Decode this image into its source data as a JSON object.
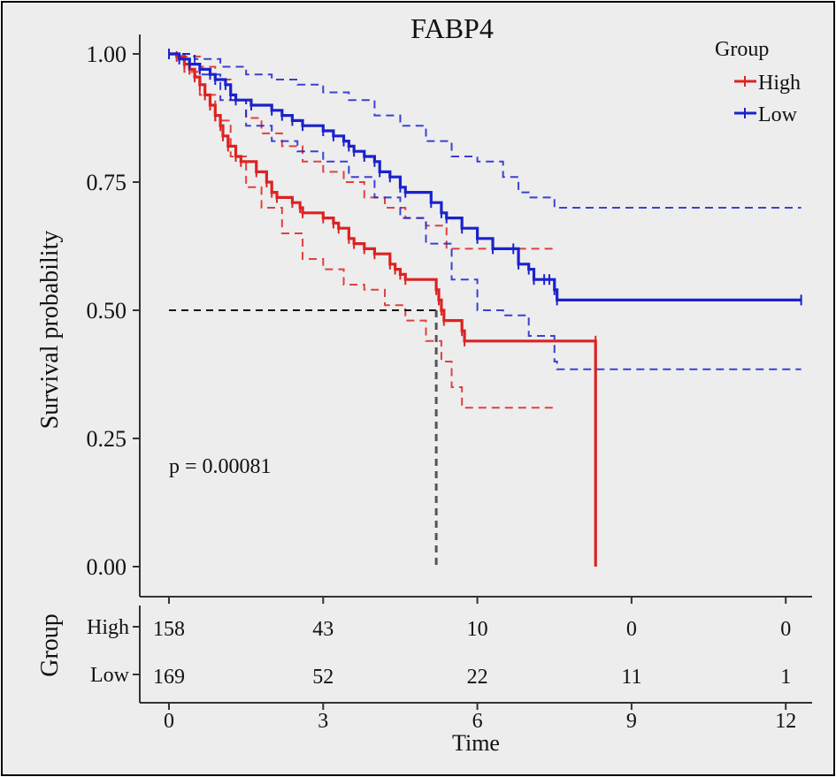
{
  "chart_data": {
    "type": "line",
    "subtype": "kaplan-meier",
    "title": "FABP4",
    "xlabel": "Time",
    "ylabel": "Survival probability",
    "xlim": [
      -0.3,
      12.5
    ],
    "ylim": [
      0,
      1
    ],
    "x_ticks": [
      0,
      3,
      6,
      9,
      12
    ],
    "x_tick_labels": [
      "0",
      "3",
      "6",
      "9",
      "12"
    ],
    "y_ticks": [
      0,
      0.25,
      0.5,
      0.75,
      1
    ],
    "y_tick_labels": [
      "0.00",
      "0.25",
      "0.50",
      "0.75",
      "1.00"
    ],
    "p_value_text": "p = 0.00081",
    "median_survival": {
      "y": 0.5,
      "x": 5.2
    },
    "legend": {
      "title": "Group",
      "position": "top-right",
      "entries": [
        "High",
        "Low"
      ]
    },
    "colors": {
      "High": "#dd2222",
      "Low": "#1a22cc",
      "median": "#444444"
    },
    "series": [
      {
        "name": "High",
        "color": "#dd2222",
        "points": [
          [
            0,
            1.0
          ],
          [
            0.15,
            0.995
          ],
          [
            0.3,
            0.98
          ],
          [
            0.4,
            0.97
          ],
          [
            0.5,
            0.955
          ],
          [
            0.6,
            0.94
          ],
          [
            0.7,
            0.92
          ],
          [
            0.8,
            0.9
          ],
          [
            0.9,
            0.88
          ],
          [
            1.0,
            0.86
          ],
          [
            1.05,
            0.84
          ],
          [
            1.15,
            0.82
          ],
          [
            1.3,
            0.8
          ],
          [
            1.4,
            0.79
          ],
          [
            1.7,
            0.77
          ],
          [
            1.9,
            0.75
          ],
          [
            2.0,
            0.73
          ],
          [
            2.1,
            0.72
          ],
          [
            2.4,
            0.71
          ],
          [
            2.55,
            0.7
          ],
          [
            2.6,
            0.69
          ],
          [
            3.0,
            0.68
          ],
          [
            3.2,
            0.67
          ],
          [
            3.3,
            0.66
          ],
          [
            3.5,
            0.64
          ],
          [
            3.6,
            0.63
          ],
          [
            3.8,
            0.62
          ],
          [
            4.0,
            0.61
          ],
          [
            4.3,
            0.59
          ],
          [
            4.4,
            0.58
          ],
          [
            4.5,
            0.57
          ],
          [
            4.6,
            0.56
          ],
          [
            5.2,
            0.54
          ],
          [
            5.25,
            0.52
          ],
          [
            5.3,
            0.5
          ],
          [
            5.35,
            0.48
          ],
          [
            5.7,
            0.46
          ],
          [
            5.75,
            0.44
          ],
          [
            8.3,
            0.44
          ],
          [
            8.3,
            0.0
          ]
        ],
        "ci_upper": [
          [
            0,
            1.0
          ],
          [
            0.3,
            0.995
          ],
          [
            0.6,
            0.975
          ],
          [
            0.9,
            0.95
          ],
          [
            1.2,
            0.91
          ],
          [
            1.5,
            0.875
          ],
          [
            1.8,
            0.845
          ],
          [
            2.2,
            0.82
          ],
          [
            2.6,
            0.79
          ],
          [
            3.0,
            0.77
          ],
          [
            3.4,
            0.75
          ],
          [
            3.8,
            0.72
          ],
          [
            4.2,
            0.7
          ],
          [
            4.6,
            0.68
          ],
          [
            5.0,
            0.665
          ],
          [
            5.4,
            0.62
          ],
          [
            5.8,
            0.62
          ],
          [
            7.5,
            0.62
          ]
        ],
        "ci_lower": [
          [
            0,
            1.0
          ],
          [
            0.3,
            0.965
          ],
          [
            0.6,
            0.92
          ],
          [
            0.9,
            0.87
          ],
          [
            1.2,
            0.8
          ],
          [
            1.5,
            0.74
          ],
          [
            1.8,
            0.7
          ],
          [
            2.2,
            0.65
          ],
          [
            2.6,
            0.6
          ],
          [
            3.0,
            0.58
          ],
          [
            3.4,
            0.55
          ],
          [
            3.8,
            0.54
          ],
          [
            4.2,
            0.51
          ],
          [
            4.6,
            0.48
          ],
          [
            5.0,
            0.44
          ],
          [
            5.3,
            0.4
          ],
          [
            5.5,
            0.35
          ],
          [
            5.7,
            0.31
          ],
          [
            7.5,
            0.31
          ]
        ],
        "at_risk": [
          158,
          43,
          10,
          0,
          0
        ]
      },
      {
        "name": "Low",
        "color": "#1a22cc",
        "points": [
          [
            0,
            1.0
          ],
          [
            0.2,
            0.99
          ],
          [
            0.4,
            0.98
          ],
          [
            0.6,
            0.97
          ],
          [
            0.8,
            0.96
          ],
          [
            0.9,
            0.95
          ],
          [
            1.1,
            0.94
          ],
          [
            1.2,
            0.92
          ],
          [
            1.3,
            0.91
          ],
          [
            1.6,
            0.9
          ],
          [
            2.0,
            0.89
          ],
          [
            2.2,
            0.88
          ],
          [
            2.4,
            0.87
          ],
          [
            2.6,
            0.86
          ],
          [
            3.0,
            0.85
          ],
          [
            3.2,
            0.84
          ],
          [
            3.4,
            0.83
          ],
          [
            3.5,
            0.82
          ],
          [
            3.6,
            0.81
          ],
          [
            3.8,
            0.8
          ],
          [
            4.0,
            0.79
          ],
          [
            4.1,
            0.77
          ],
          [
            4.3,
            0.76
          ],
          [
            4.5,
            0.74
          ],
          [
            4.6,
            0.73
          ],
          [
            5.1,
            0.71
          ],
          [
            5.3,
            0.69
          ],
          [
            5.4,
            0.68
          ],
          [
            5.7,
            0.66
          ],
          [
            6.0,
            0.64
          ],
          [
            6.3,
            0.62
          ],
          [
            6.7,
            0.62
          ],
          [
            6.8,
            0.59
          ],
          [
            7.0,
            0.58
          ],
          [
            7.1,
            0.56
          ],
          [
            7.3,
            0.56
          ],
          [
            7.4,
            0.56
          ],
          [
            7.5,
            0.54
          ],
          [
            7.55,
            0.52
          ],
          [
            12.3,
            0.52
          ]
        ],
        "ci_upper": [
          [
            0,
            1.0
          ],
          [
            0.5,
            0.99
          ],
          [
            1.0,
            0.975
          ],
          [
            1.5,
            0.96
          ],
          [
            2.0,
            0.95
          ],
          [
            2.5,
            0.94
          ],
          [
            3.0,
            0.925
          ],
          [
            3.5,
            0.91
          ],
          [
            4.0,
            0.88
          ],
          [
            4.5,
            0.86
          ],
          [
            5.0,
            0.83
          ],
          [
            5.5,
            0.8
          ],
          [
            6.0,
            0.79
          ],
          [
            6.5,
            0.76
          ],
          [
            6.8,
            0.73
          ],
          [
            7.0,
            0.72
          ],
          [
            7.5,
            0.7
          ],
          [
            12.3,
            0.7
          ]
        ],
        "ci_lower": [
          [
            0,
            1.0
          ],
          [
            0.5,
            0.96
          ],
          [
            1.0,
            0.91
          ],
          [
            1.5,
            0.86
          ],
          [
            2.0,
            0.83
          ],
          [
            2.5,
            0.81
          ],
          [
            3.0,
            0.79
          ],
          [
            3.5,
            0.76
          ],
          [
            4.0,
            0.72
          ],
          [
            4.5,
            0.68
          ],
          [
            5.0,
            0.63
          ],
          [
            5.5,
            0.56
          ],
          [
            6.0,
            0.5
          ],
          [
            6.5,
            0.49
          ],
          [
            7.0,
            0.45
          ],
          [
            7.5,
            0.4
          ],
          [
            7.55,
            0.385
          ],
          [
            12.3,
            0.385
          ]
        ],
        "at_risk": [
          169,
          52,
          22,
          11,
          1
        ]
      }
    ],
    "risk_table": {
      "ylabel": "Group",
      "row_labels": [
        "High",
        "Low"
      ],
      "times": [
        0,
        3,
        6,
        9,
        12
      ]
    }
  }
}
